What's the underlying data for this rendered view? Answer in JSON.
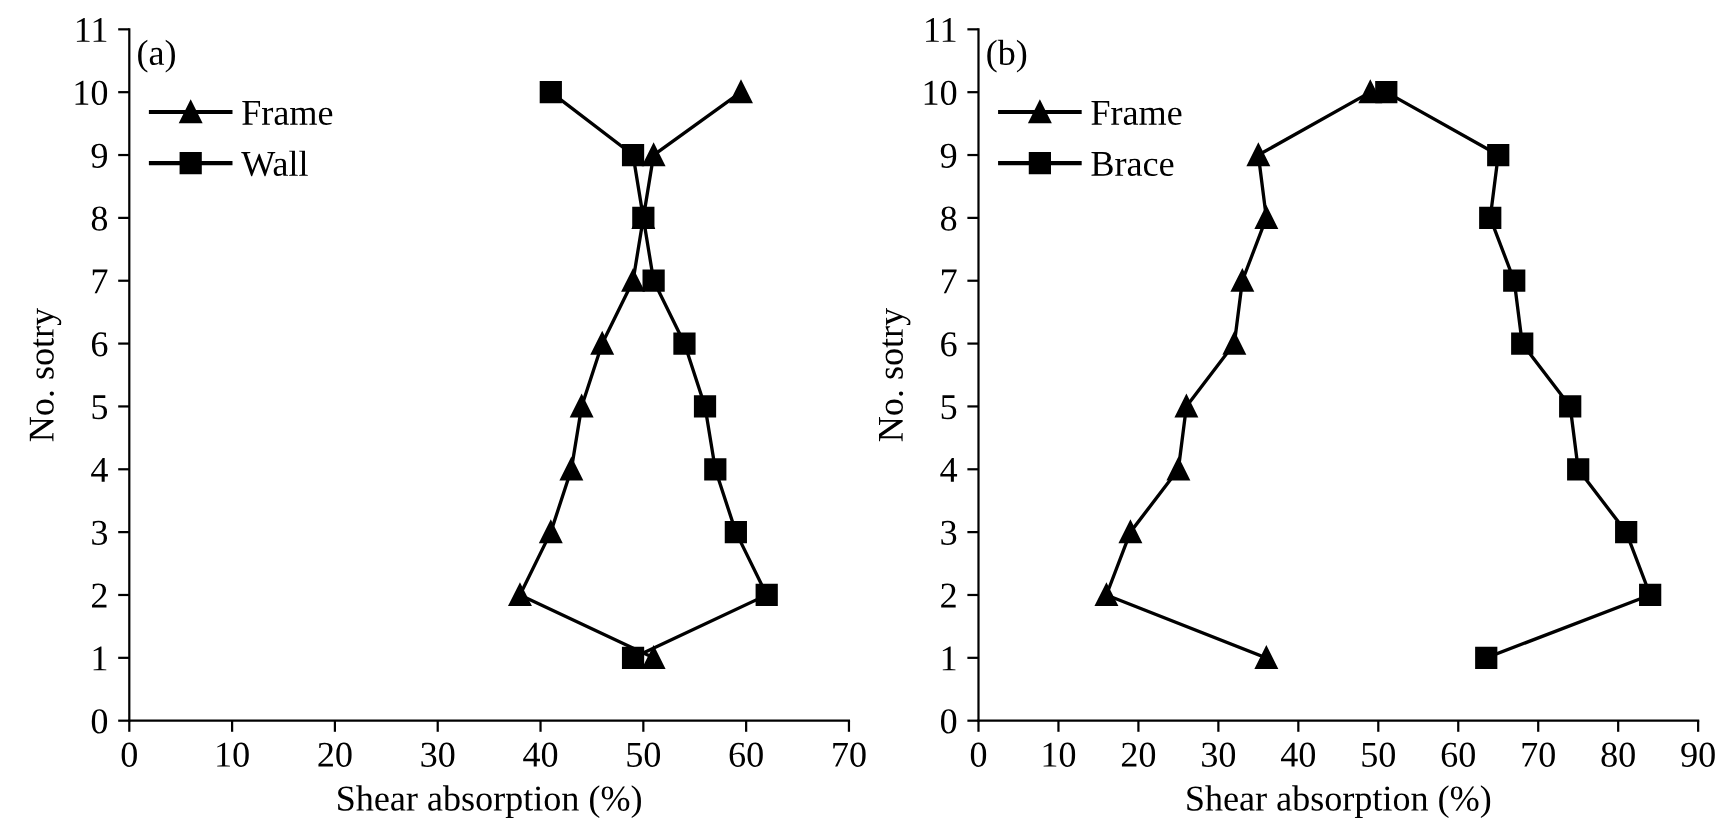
{
  "chart_data": [
    {
      "type": "line",
      "xlabel": "Shear absorption (%)",
      "ylabel": "No. sotry",
      "annotations": [
        "(a)"
      ],
      "xlim": [
        0,
        70
      ],
      "xticks": [
        0,
        10,
        20,
        30,
        40,
        50,
        60,
        70
      ],
      "ylim": [
        0,
        11
      ],
      "yticks": [
        0,
        1,
        2,
        3,
        4,
        5,
        6,
        7,
        8,
        9,
        10,
        11
      ],
      "grid": false,
      "legend": "top left",
      "line_style": "solid",
      "series": [
        {
          "name": "Frame",
          "color": "#000000",
          "marker": "triangle",
          "x": [
            51,
            38,
            41,
            43,
            44,
            46,
            49,
            50,
            51,
            59.5
          ],
          "values": [
            1,
            2,
            3,
            4,
            5,
            6,
            7,
            8,
            9,
            10
          ]
        },
        {
          "name": "Wall",
          "color": "#000000",
          "marker": "square",
          "x": [
            49,
            62,
            59,
            57,
            56,
            54,
            51,
            50,
            49,
            41
          ],
          "values": [
            1,
            2,
            3,
            4,
            5,
            6,
            7,
            8,
            9,
            10
          ]
        }
      ]
    },
    {
      "type": "line",
      "xlabel": "Shear absorption (%)",
      "ylabel": "No. sotry",
      "annotations": [
        "(b)"
      ],
      "xlim": [
        0,
        90
      ],
      "xticks": [
        0,
        10,
        20,
        30,
        40,
        50,
        60,
        70,
        80,
        90
      ],
      "ylim": [
        0,
        11
      ],
      "yticks": [
        0,
        1,
        2,
        3,
        4,
        5,
        6,
        7,
        8,
        9,
        10,
        11
      ],
      "grid": false,
      "legend": "top left",
      "line_style": "solid",
      "series": [
        {
          "name": "Frame",
          "color": "#000000",
          "marker": "triangle",
          "x": [
            36,
            16,
            19,
            25,
            26,
            32,
            33,
            36,
            35,
            49
          ],
          "values": [
            1,
            2,
            3,
            4,
            5,
            6,
            7,
            8,
            9,
            10
          ]
        },
        {
          "name": "Brace",
          "color": "#000000",
          "marker": "square",
          "x": [
            63.5,
            84,
            81,
            75,
            74,
            68,
            67,
            64,
            65,
            51
          ],
          "values": [
            1,
            2,
            3,
            4,
            5,
            6,
            7,
            8,
            9,
            10
          ]
        }
      ]
    }
  ]
}
